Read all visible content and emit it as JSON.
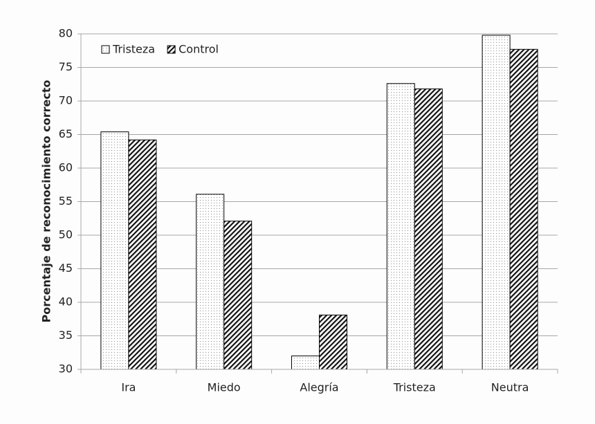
{
  "chart_data": {
    "type": "bar",
    "y_label": "Porcentaje de reconocimiento correcto",
    "categories": [
      "Ira",
      "Miedo",
      "Alegría",
      "Tristeza",
      "Neutra"
    ],
    "series": [
      {
        "name": "Tristeza",
        "color": "#000000",
        "pattern": "dots",
        "values": [
          65.4,
          56.1,
          32,
          72.6,
          79.8
        ]
      },
      {
        "name": "Control",
        "color": "#000000",
        "pattern": "hatch",
        "values": [
          64.2,
          52.1,
          38.1,
          71.8,
          77.7
        ]
      }
    ],
    "ylim": [
      30,
      80
    ],
    "yticks": [
      30,
      35,
      40,
      45,
      50,
      55,
      60,
      65,
      70,
      75,
      80
    ],
    "grid": true,
    "legend": "top-left"
  }
}
